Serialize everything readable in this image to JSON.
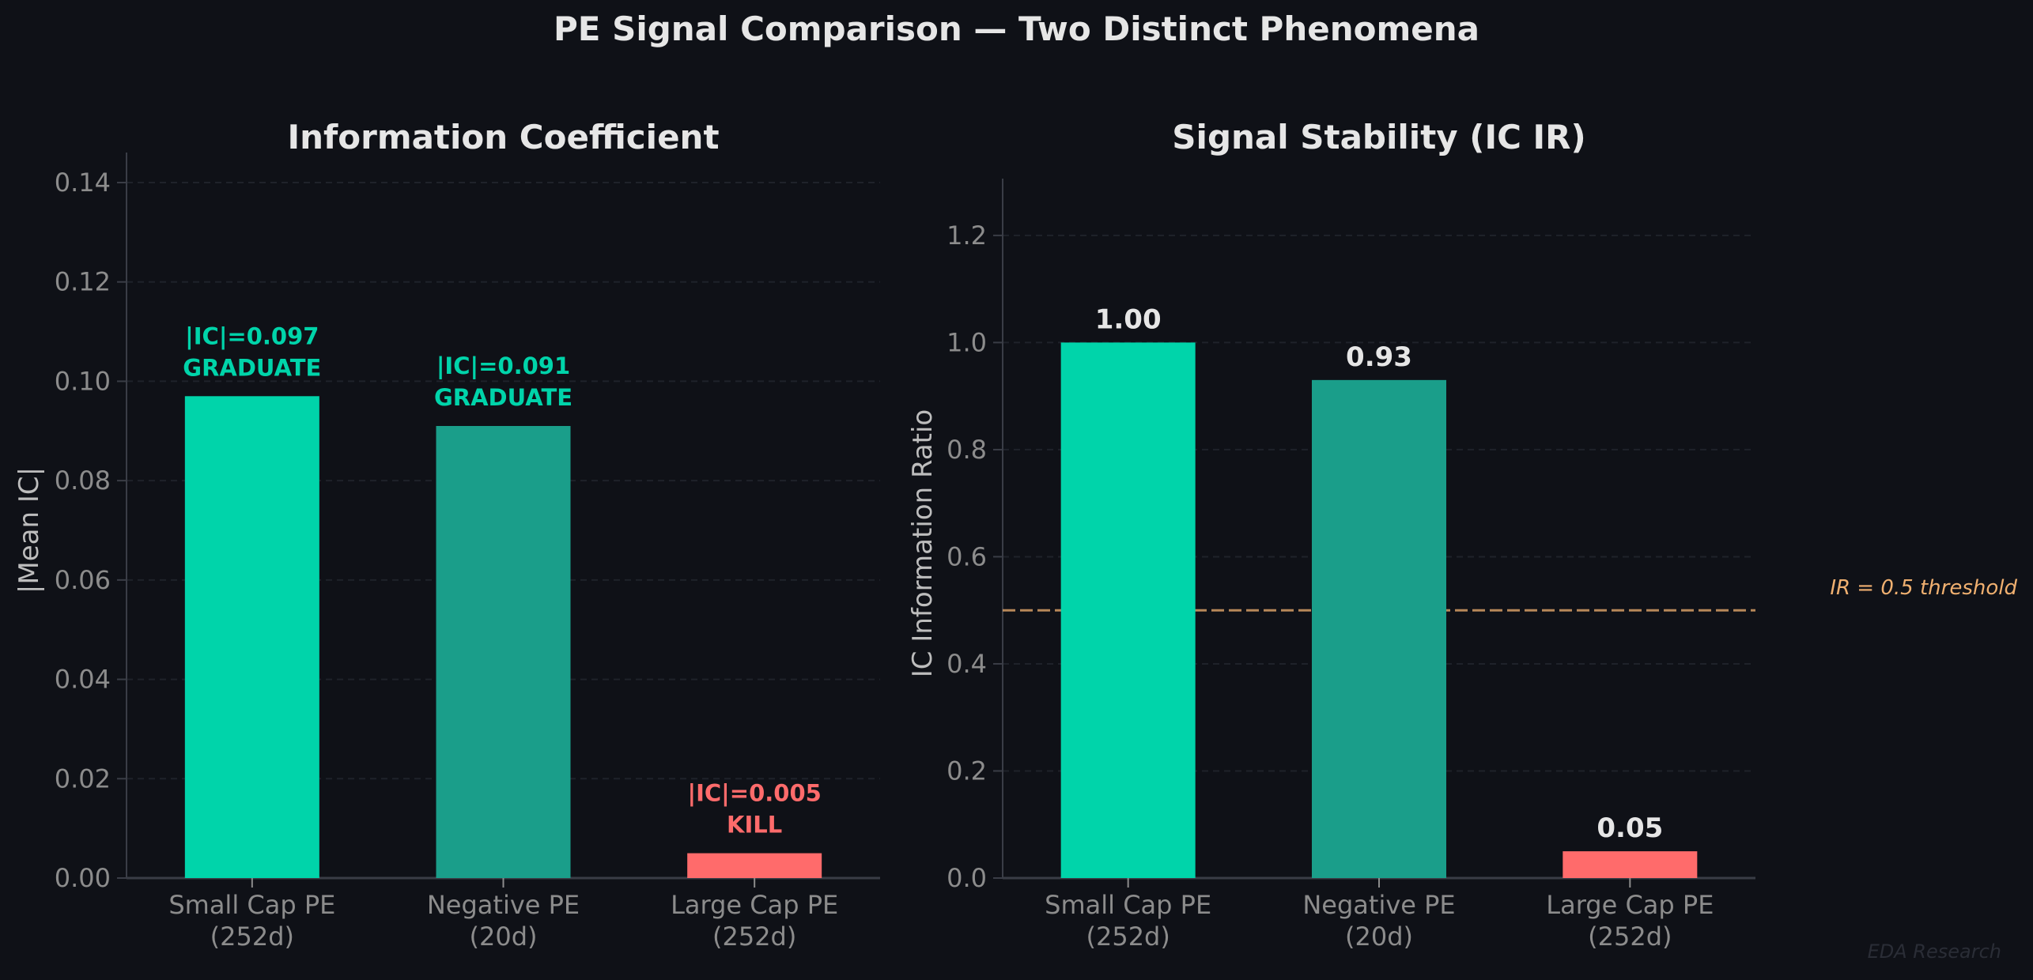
{
  "suptitle": "PE Signal Comparison — Two Distinct Phenomena",
  "watermark": "EDA Research",
  "colors": {
    "background": "#0f1117",
    "graduate_bright": "#00d4aa",
    "graduate_dark": "#1a9e8a",
    "kill": "#ff6b6b",
    "threshold": "#f0b070",
    "axis": "#3a3d46",
    "tick_label": "#8c8c8c",
    "title": "#e6e6e6"
  },
  "chart_data": [
    {
      "type": "bar",
      "title": "Information Coefficient",
      "xlabel": "",
      "ylabel": "|Mean IC|",
      "categories": [
        "Small Cap PE\n(252d)",
        "Negative PE\n(20d)",
        "Large Cap PE\n(252d)"
      ],
      "category_lines": [
        [
          "Small Cap PE",
          "(252d)"
        ],
        [
          "Negative PE",
          "(20d)"
        ],
        [
          "Large Cap PE",
          "(252d)"
        ]
      ],
      "values": [
        0.097,
        0.091,
        0.005
      ],
      "bar_colors": [
        "#00d4aa",
        "#1a9e8a",
        "#ff6b6b"
      ],
      "annotations": [
        {
          "line1": "|IC|=0.097",
          "line2": "GRADUATE",
          "color": "#00d4aa"
        },
        {
          "line1": "|IC|=0.091",
          "line2": "GRADUATE",
          "color": "#00d4aa"
        },
        {
          "line1": "|IC|=0.005",
          "line2": "KILL",
          "color": "#ff6b6b"
        }
      ],
      "ylim": [
        0,
        0.14
      ],
      "yticks": [
        "0.00",
        "0.02",
        "0.04",
        "0.06",
        "0.08",
        "0.10",
        "0.12",
        "0.14"
      ],
      "grid": true
    },
    {
      "type": "bar",
      "title": "Signal Stability (IC IR)",
      "xlabel": "",
      "ylabel": "IC Information Ratio",
      "categories": [
        "Small Cap PE\n(252d)",
        "Negative PE\n(20d)",
        "Large Cap PE\n(252d)"
      ],
      "category_lines": [
        [
          "Small Cap PE",
          "(252d)"
        ],
        [
          "Negative PE",
          "(20d)"
        ],
        [
          "Large Cap PE",
          "(252d)"
        ]
      ],
      "values": [
        1.0,
        0.93,
        0.05
      ],
      "value_labels": [
        "1.00",
        "0.93",
        "0.05"
      ],
      "bar_colors": [
        "#00d4aa",
        "#1a9e8a",
        "#ff6b6b"
      ],
      "ylim": [
        0,
        1.25
      ],
      "yticks": [
        "0.0",
        "0.2",
        "0.4",
        "0.6",
        "0.8",
        "1.0",
        "1.2"
      ],
      "reference_line": {
        "y": 0.5,
        "label": "IR = 0.5 threshold",
        "style": "dashed"
      },
      "grid": true
    }
  ]
}
